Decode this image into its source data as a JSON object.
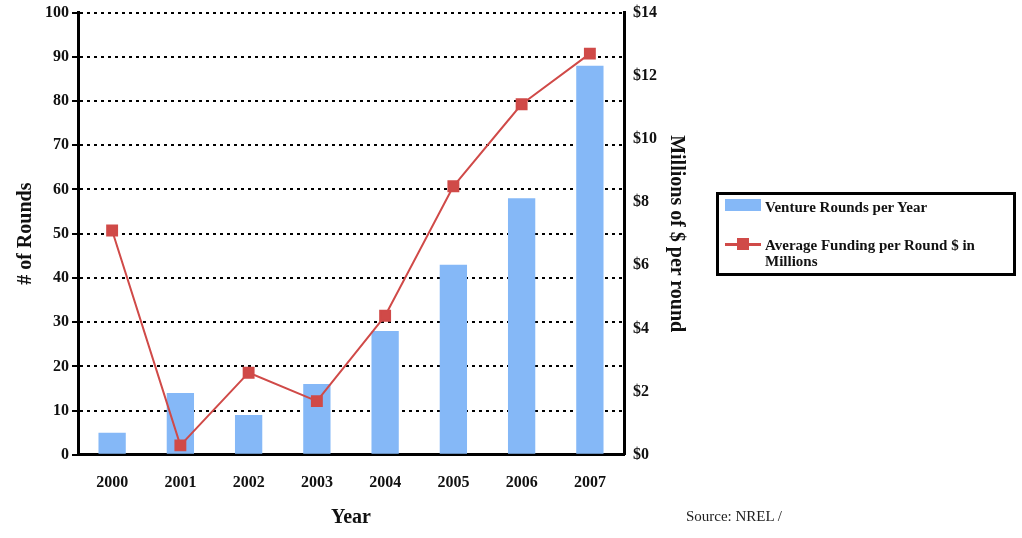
{
  "chart_data": {
    "type": "bar",
    "categories": [
      "2000",
      "2001",
      "2002",
      "2003",
      "2004",
      "2005",
      "2006",
      "2007"
    ],
    "series": [
      {
        "name": "Venture Rounds per Year",
        "color": "#85b8f7",
        "values": [
          5,
          14,
          9,
          16,
          28,
          43,
          58,
          88
        ]
      },
      {
        "name": "Average Funding per Round $ in Millions",
        "type": "line",
        "axis": "y2",
        "color": "#d04a48",
        "values": [
          7.1,
          0.3,
          2.6,
          1.7,
          4.4,
          8.5,
          11.1,
          12.7
        ]
      }
    ],
    "xlabel": "Year",
    "ylabel": "# of Rounds",
    "y2label": "Millions of $ per round",
    "ylim": [
      0,
      100
    ],
    "yticks": [
      0,
      10,
      20,
      30,
      40,
      50,
      60,
      70,
      80,
      90,
      100
    ],
    "y2lim": [
      0,
      14
    ],
    "y2ticks": [
      {
        "value": 0,
        "label": "$0"
      },
      {
        "value": 2,
        "label": "$2"
      },
      {
        "value": 4,
        "label": "$4"
      },
      {
        "value": 6,
        "label": "$6"
      },
      {
        "value": 8,
        "label": "$8"
      },
      {
        "value": 10,
        "label": "$10"
      },
      {
        "value": 12,
        "label": "$12"
      },
      {
        "value": 14,
        "label": "$14"
      }
    ],
    "grid": "y",
    "legend": "right",
    "marker": "square",
    "line_style": "solid",
    "annotations": [
      "Source: NREL /"
    ]
  }
}
